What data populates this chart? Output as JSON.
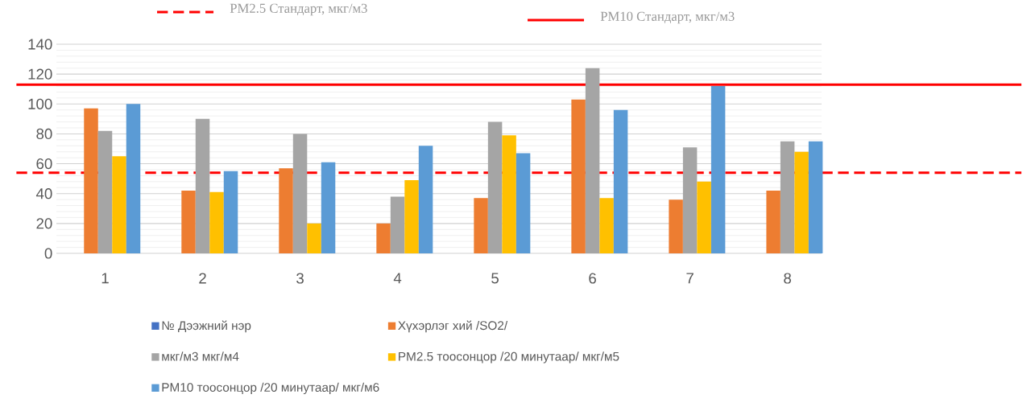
{
  "chart_data": {
    "type": "bar",
    "categories": [
      "1",
      "2",
      "3",
      "4",
      "5",
      "6",
      "7",
      "8"
    ],
    "series": [
      {
        "name": "№ Дээжний нэр",
        "color": "#4472c4",
        "values": [
          0,
          0,
          0,
          0,
          0,
          0,
          0,
          0
        ]
      },
      {
        "name": "Хүхэрлэг хий /SO2/",
        "color": "#ed7d31",
        "values": [
          97,
          42,
          57,
          20,
          37,
          103,
          36,
          42
        ]
      },
      {
        "name": "мкг/м3 мкг/м4",
        "color": "#a5a5a5",
        "values": [
          82,
          90,
          80,
          38,
          88,
          124,
          71,
          75
        ]
      },
      {
        "name": "PM2.5 тоосонцор /20 минутаар/ мкг/м5",
        "color": "#ffc000",
        "values": [
          65,
          41,
          20,
          49,
          79,
          37,
          48,
          68
        ]
      },
      {
        "name": "PM10 тоосонцор /20 минутаар/ мкг/м6",
        "color": "#5b9bd5",
        "values": [
          100,
          55,
          61,
          72,
          67,
          96,
          112,
          75
        ]
      }
    ],
    "ylim": [
      0,
      140
    ],
    "yticks": [
      0,
      20,
      40,
      60,
      80,
      100,
      120,
      140
    ],
    "grid": "y",
    "legend": "bottom",
    "ref_lines": [
      {
        "axis": "y",
        "value": 54,
        "label": "PM2.5 Стандарт, мкг/м3",
        "color": "#ff0000",
        "line_style": "dashed"
      },
      {
        "axis": "y",
        "value": 113,
        "label": "PM10 Стандарт, мкг/м3",
        "color": "#ff0000",
        "line_style": "solid"
      }
    ]
  }
}
